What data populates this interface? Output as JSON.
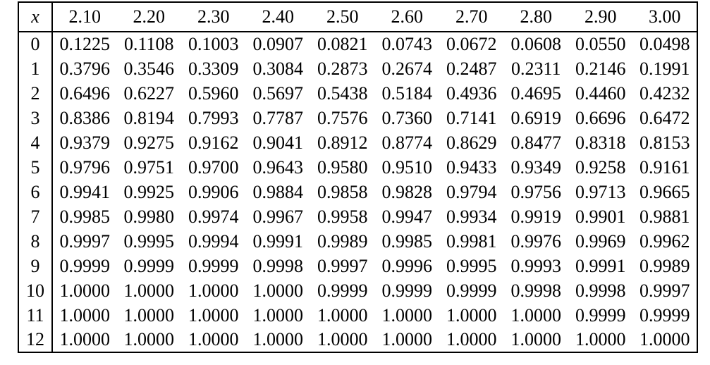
{
  "colors": {
    "background": "#ffffff",
    "text": "#000000",
    "border": "#000000"
  },
  "table": {
    "corner_label": "x",
    "column_headers": [
      "2.10",
      "2.20",
      "2.30",
      "2.40",
      "2.50",
      "2.60",
      "2.70",
      "2.80",
      "2.90",
      "3.00"
    ],
    "rows": [
      {
        "x": "0",
        "values": [
          "0.1225",
          "0.1108",
          "0.1003",
          "0.0907",
          "0.0821",
          "0.0743",
          "0.0672",
          "0.0608",
          "0.0550",
          "0.0498"
        ]
      },
      {
        "x": "1",
        "values": [
          "0.3796",
          "0.3546",
          "0.3309",
          "0.3084",
          "0.2873",
          "0.2674",
          "0.2487",
          "0.2311",
          "0.2146",
          "0.1991"
        ]
      },
      {
        "x": "2",
        "values": [
          "0.6496",
          "0.6227",
          "0.5960",
          "0.5697",
          "0.5438",
          "0.5184",
          "0.4936",
          "0.4695",
          "0.4460",
          "0.4232"
        ]
      },
      {
        "x": "3",
        "values": [
          "0.8386",
          "0.8194",
          "0.7993",
          "0.7787",
          "0.7576",
          "0.7360",
          "0.7141",
          "0.6919",
          "0.6696",
          "0.6472"
        ]
      },
      {
        "x": "4",
        "values": [
          "0.9379",
          "0.9275",
          "0.9162",
          "0.9041",
          "0.8912",
          "0.8774",
          "0.8629",
          "0.8477",
          "0.8318",
          "0.8153"
        ]
      },
      {
        "x": "5",
        "values": [
          "0.9796",
          "0.9751",
          "0.9700",
          "0.9643",
          "0.9580",
          "0.9510",
          "0.9433",
          "0.9349",
          "0.9258",
          "0.9161"
        ]
      },
      {
        "x": "6",
        "values": [
          "0.9941",
          "0.9925",
          "0.9906",
          "0.9884",
          "0.9858",
          "0.9828",
          "0.9794",
          "0.9756",
          "0.9713",
          "0.9665"
        ]
      },
      {
        "x": "7",
        "values": [
          "0.9985",
          "0.9980",
          "0.9974",
          "0.9967",
          "0.9958",
          "0.9947",
          "0.9934",
          "0.9919",
          "0.9901",
          "0.9881"
        ]
      },
      {
        "x": "8",
        "values": [
          "0.9997",
          "0.9995",
          "0.9994",
          "0.9991",
          "0.9989",
          "0.9985",
          "0.9981",
          "0.9976",
          "0.9969",
          "0.9962"
        ]
      },
      {
        "x": "9",
        "values": [
          "0.9999",
          "0.9999",
          "0.9999",
          "0.9998",
          "0.9997",
          "0.9996",
          "0.9995",
          "0.9993",
          "0.9991",
          "0.9989"
        ]
      },
      {
        "x": "10",
        "values": [
          "1.0000",
          "1.0000",
          "1.0000",
          "1.0000",
          "0.9999",
          "0.9999",
          "0.9999",
          "0.9998",
          "0.9998",
          "0.9997"
        ]
      },
      {
        "x": "11",
        "values": [
          "1.0000",
          "1.0000",
          "1.0000",
          "1.0000",
          "1.0000",
          "1.0000",
          "1.0000",
          "1.0000",
          "0.9999",
          "0.9999"
        ]
      },
      {
        "x": "12",
        "values": [
          "1.0000",
          "1.0000",
          "1.0000",
          "1.0000",
          "1.0000",
          "1.0000",
          "1.0000",
          "1.0000",
          "1.0000",
          "1.0000"
        ]
      }
    ]
  }
}
